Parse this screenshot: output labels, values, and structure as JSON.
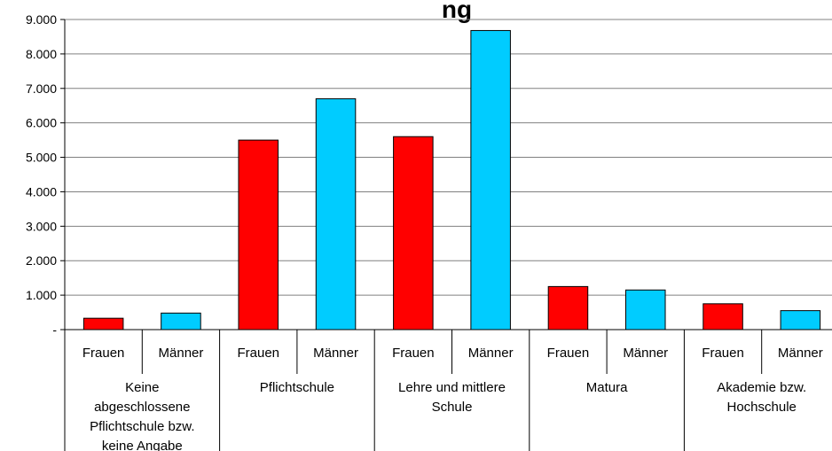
{
  "chart_data": {
    "type": "bar",
    "title": "",
    "title_visible_fragment": "ng",
    "y_axis": {
      "min": 0,
      "max": 9000,
      "step": 1000,
      "tick_labels": [
        "-",
        "1.000",
        "2.000",
        "3.000",
        "4.000",
        "5.000",
        "6.000",
        "7.000",
        "8.000",
        "9.000"
      ]
    },
    "grid": true,
    "groups": [
      {
        "label": "Keine abgeschlossene Pflichtschule bzw. keine Angabe",
        "label_lines": [
          "Keine",
          "abgeschlossene",
          "Pflichtschule bzw.",
          "keine Angabe"
        ],
        "bars": [
          {
            "category": "Frauen",
            "value": 330
          },
          {
            "category": "Männer",
            "value": 480
          }
        ]
      },
      {
        "label": "Pflichtschule",
        "label_lines": [
          "Pflichtschule"
        ],
        "bars": [
          {
            "category": "Frauen",
            "value": 5500
          },
          {
            "category": "Männer",
            "value": 6700
          }
        ]
      },
      {
        "label": "Lehre und mittlere Schule",
        "label_lines": [
          "Lehre und mittlere",
          "Schule"
        ],
        "bars": [
          {
            "category": "Frauen",
            "value": 5600
          },
          {
            "category": "Männer",
            "value": 8680
          }
        ]
      },
      {
        "label": "Matura",
        "label_lines": [
          "Matura"
        ],
        "bars": [
          {
            "category": "Frauen",
            "value": 1250
          },
          {
            "category": "Männer",
            "value": 1150
          }
        ]
      },
      {
        "label": "Akademie bzw. Hochschule",
        "label_lines": [
          "Akademie bzw.",
          "Hochschule"
        ],
        "bars": [
          {
            "category": "Frauen",
            "value": 750
          },
          {
            "category": "Männer",
            "value": 550
          }
        ]
      }
    ],
    "colors": {
      "Frauen": "#ff0000",
      "Männer": "#00ccff"
    }
  }
}
